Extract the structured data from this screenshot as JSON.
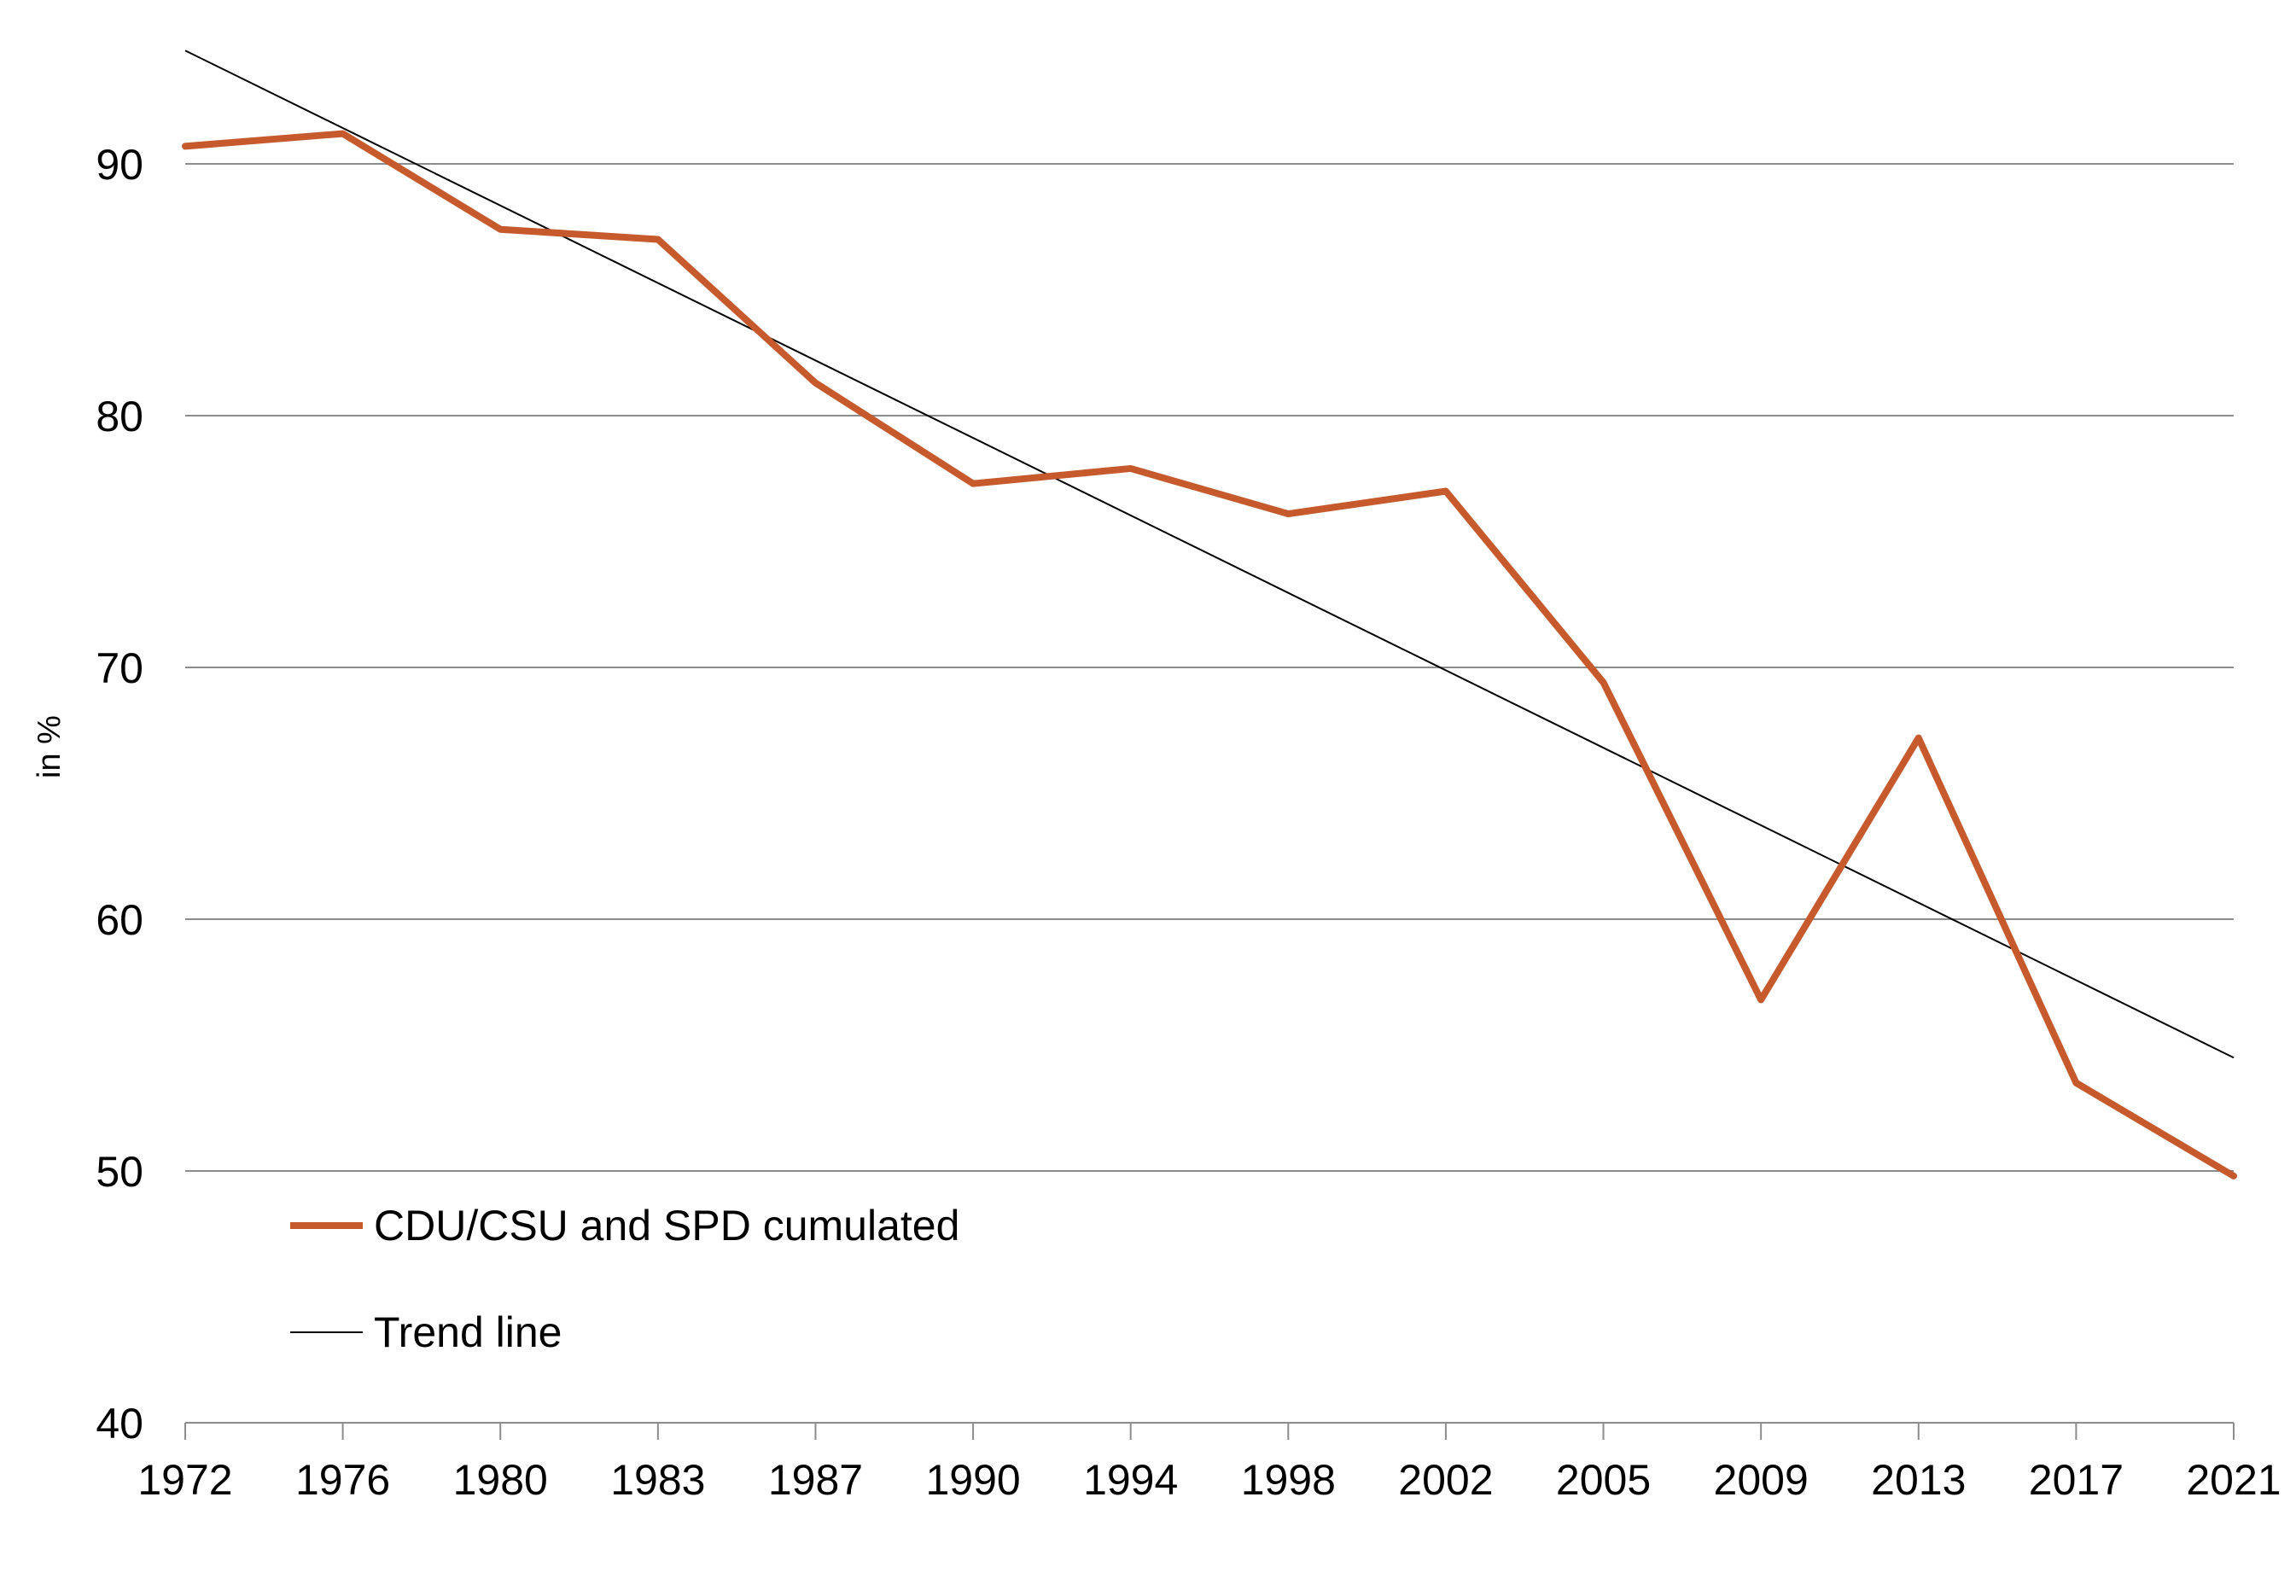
{
  "chart_data": {
    "type": "line",
    "title": "",
    "xlabel": "",
    "ylabel": "in %",
    "categories": [
      "1972",
      "1976",
      "1980",
      "1983",
      "1987",
      "1990",
      "1994",
      "1998",
      "2002",
      "2005",
      "2009",
      "2013",
      "2017",
      "2021"
    ],
    "series": [
      {
        "name": "CDU/CSU and SPD cumulated",
        "color": "#c65a2c",
        "values": [
          90.7,
          91.2,
          87.4,
          87.0,
          81.3,
          77.3,
          77.9,
          76.1,
          77.0,
          69.4,
          56.8,
          67.2,
          53.5,
          49.8
        ]
      },
      {
        "name": "Trend line",
        "color": "#000000",
        "trend_start": 94.5,
        "trend_end": 54.5
      }
    ],
    "yticks": [
      40,
      50,
      60,
      70,
      80,
      90
    ],
    "ylim": [
      40,
      95
    ],
    "grid": true,
    "legend": "bottom-left"
  }
}
